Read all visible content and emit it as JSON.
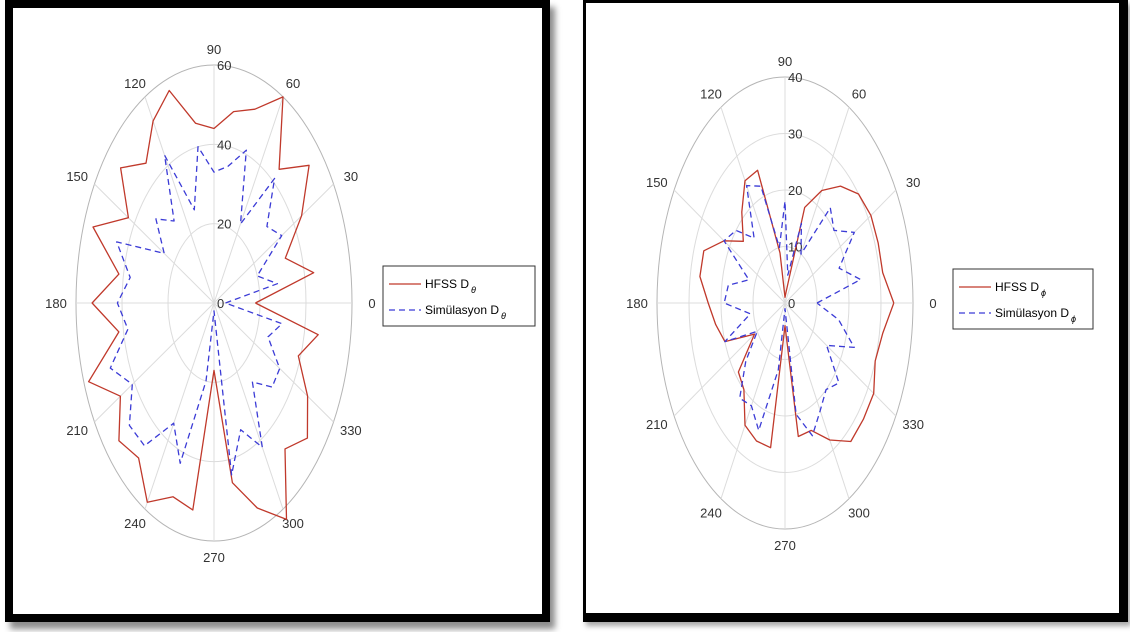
{
  "chart_data": [
    {
      "type": "polar",
      "angular_ticks": [
        "0",
        "30",
        "60",
        "90",
        "120",
        "150",
        "180",
        "210",
        "240",
        "270",
        "300",
        "330"
      ],
      "radial_ticks": [
        "0",
        "20",
        "40",
        "60"
      ],
      "rlim": [
        0,
        60
      ],
      "grid": true,
      "legend": "right",
      "series": [
        {
          "name": "HFSS D",
          "name_subscript": "θ",
          "style": "solid",
          "color": "#c0392b",
          "theta_deg": [
            0,
            10,
            20,
            30,
            40,
            50,
            60,
            70,
            80,
            90,
            100,
            110,
            120,
            130,
            140,
            150,
            160,
            170,
            180,
            190,
            200,
            210,
            220,
            230,
            240,
            250,
            260,
            270,
            280,
            290,
            300,
            310,
            320,
            330,
            340,
            350,
            360
          ],
          "r": [
            18,
            44,
            33,
            44,
            54,
            44,
            60,
            52,
            49,
            44,
            46,
            57,
            53,
            46,
            53,
            43,
            56,
            42,
            53,
            42,
            58,
            47,
            54,
            51,
            58,
            52,
            53,
            17,
            46,
            55,
            63,
            48,
            53,
            47,
            39,
            46,
            18
          ]
        },
        {
          "name": "Simülasyon D",
          "name_subscript": "θ",
          "style": "dashed",
          "color": "#3b3bd6",
          "theta_deg": [
            0,
            10,
            20,
            30,
            40,
            50,
            60,
            70,
            80,
            90,
            100,
            110,
            120,
            130,
            140,
            150,
            160,
            170,
            180,
            190,
            200,
            210,
            220,
            230,
            240,
            250,
            260,
            270,
            280,
            290,
            300,
            310,
            320,
            330,
            340,
            350,
            360
          ],
          "r": [
            5,
            28,
            20,
            34,
            30,
            41,
            23,
            41,
            35,
            33,
            40,
            25,
            43,
            27,
            33,
            25,
            45,
            37,
            42,
            38,
            48,
            41,
            48,
            47,
            35,
            43,
            20,
            2,
            44,
            34,
            42,
            26,
            33,
            33,
            25,
            30,
            5
          ]
        }
      ]
    },
    {
      "type": "polar",
      "angular_ticks": [
        "0",
        "30",
        "60",
        "90",
        "120",
        "150",
        "180",
        "210",
        "240",
        "270",
        "300",
        "330"
      ],
      "radial_ticks": [
        "0",
        "10",
        "20",
        "30",
        "40"
      ],
      "rlim": [
        0,
        40
      ],
      "grid": true,
      "legend": "right",
      "series": [
        {
          "name": "HFSS D",
          "name_subscript": "ϕ",
          "style": "solid",
          "color": "#c0392b",
          "theta_deg": [
            0,
            10,
            20,
            30,
            40,
            50,
            60,
            70,
            80,
            90,
            100,
            110,
            120,
            130,
            140,
            150,
            160,
            170,
            180,
            190,
            200,
            210,
            220,
            230,
            240,
            250,
            260,
            270,
            280,
            290,
            300,
            310,
            320,
            330,
            340,
            350,
            360
          ],
          "r": [
            34,
            31,
            31,
            31,
            30,
            27,
            23,
            18,
            2,
            1,
            9,
            25,
            25,
            21,
            17,
            22,
            27,
            27,
            24,
            22,
            20,
            11,
            19,
            20,
            25,
            26,
            26,
            4,
            24,
            24,
            28,
            32,
            32,
            32,
            30,
            31,
            34
          ]
        },
        {
          "name": "Simülasyon D",
          "name_subscript": "ϕ",
          "style": "dashed",
          "color": "#3b3bd6",
          "theta_deg": [
            0,
            10,
            20,
            30,
            40,
            50,
            60,
            70,
            80,
            90,
            100,
            110,
            120,
            130,
            140,
            150,
            160,
            170,
            180,
            190,
            200,
            210,
            220,
            230,
            240,
            250,
            260,
            270,
            280,
            290,
            300,
            310,
            320,
            330,
            340,
            350,
            360
          ],
          "r": [
            10,
            24,
            18,
            25,
            20,
            22,
            10,
            15,
            5,
            18,
            10,
            22,
            24,
            15,
            20,
            22,
            12,
            18,
            19,
            11,
            20,
            10,
            16,
            22,
            21,
            24,
            12,
            1,
            20,
            25,
            22,
            20,
            22,
            15,
            23,
            17,
            10
          ]
        }
      ]
    }
  ]
}
